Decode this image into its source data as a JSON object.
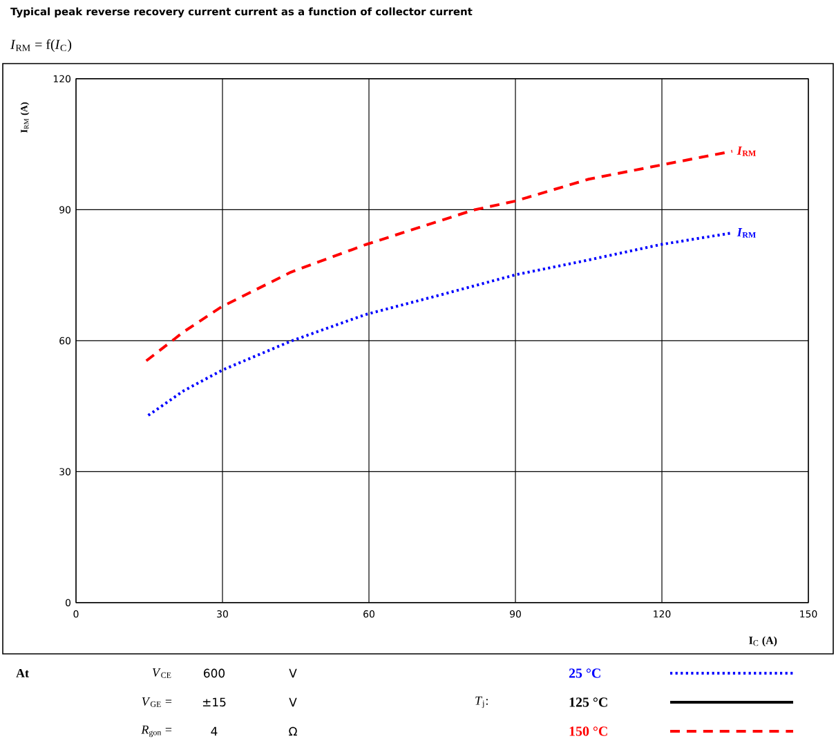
{
  "chart_data": {
    "type": "line",
    "title": "Typical peak reverse recovery current current as a function of collector current",
    "subtitle": "*I*$_{RM}$ = f(*I*$_{C}$)",
    "xlabel": "**I**$_{C}$ **(A)**",
    "ylabel": "**I**$_{RM}$ **(A)**",
    "xlim": [
      0,
      150
    ],
    "ylim": [
      0,
      120
    ],
    "xticks": [
      0,
      30,
      60,
      90,
      120,
      150
    ],
    "yticks": [
      0,
      30,
      60,
      90,
      120
    ],
    "grid": true,
    "legend": "bottom right",
    "legend_title": "*T*$_{j}$:",
    "marker": "none",
    "series": [
      {
        "name": "25 °C",
        "color": "#0000ff",
        "line_style": "dotted",
        "x": [
          14.8,
          22,
          30,
          44,
          59.3,
          75,
          90,
          105,
          119.6,
          134.4
        ],
        "values": [
          42.9,
          48.5,
          53.3,
          59.9,
          66,
          70.6,
          75.1,
          78.5,
          82,
          84.7
        ]
      },
      {
        "name": "125 °C",
        "color": "#000000",
        "line_style": "solid"
      },
      {
        "name": "150 °C",
        "color": "#ff0000",
        "line_style": "dashed",
        "x": [
          14.4,
          22,
          29.7,
          44,
          59.3,
          81.3,
          90,
          105,
          119.6,
          134.4
        ],
        "values": [
          55.4,
          62,
          67.7,
          75.7,
          82,
          89.9,
          92,
          97,
          100.2,
          103.4
        ]
      }
    ],
    "annotations": [
      "At",
      "*V*$_{CE}$",
      "600",
      "V",
      "*V*$_{GE}$ =",
      "±15",
      "V",
      "*R*$_{gon}$ =",
      "4",
      "Ω",
      {
        "text": "*I*$_{RM}$",
        "x": 134.4,
        "y": 103.4
      },
      {
        "text": "*I*$_{RM}$",
        "x": 134.4,
        "y": 84.7
      }
    ]
  }
}
